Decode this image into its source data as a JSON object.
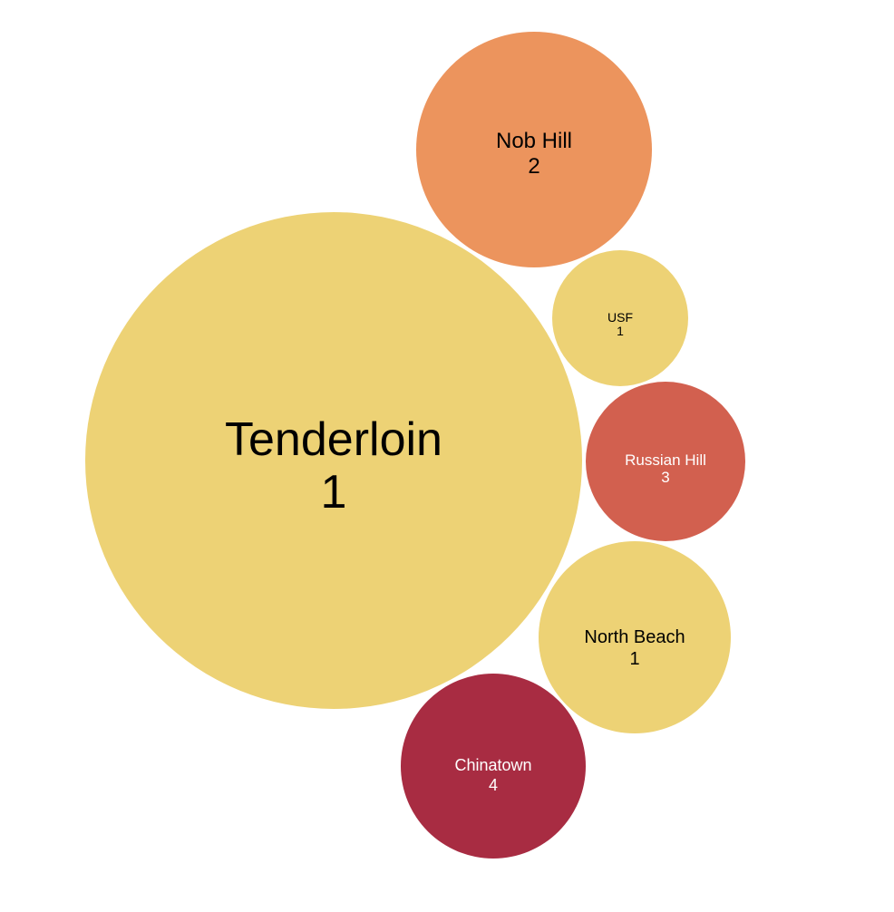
{
  "chart_data": {
    "type": "bubble",
    "title": "",
    "items": [
      {
        "name": "Tenderloin",
        "label_value": "1",
        "color": "#EDD275",
        "text_color": "#000000"
      },
      {
        "name": "Nob Hill",
        "label_value": "2",
        "color": "#EC945D",
        "text_color": "#000000"
      },
      {
        "name": "USF",
        "label_value": "1",
        "color": "#EDD275",
        "text_color": "#000000"
      },
      {
        "name": "Russian Hill",
        "label_value": "3",
        "color": "#D2604F",
        "text_color": "#ffffff"
      },
      {
        "name": "North Beach",
        "label_value": "1",
        "color": "#EDD275",
        "text_color": "#000000"
      },
      {
        "name": "Chinatown",
        "label_value": "4",
        "color": "#A82C42",
        "text_color": "#ffffff"
      }
    ]
  }
}
